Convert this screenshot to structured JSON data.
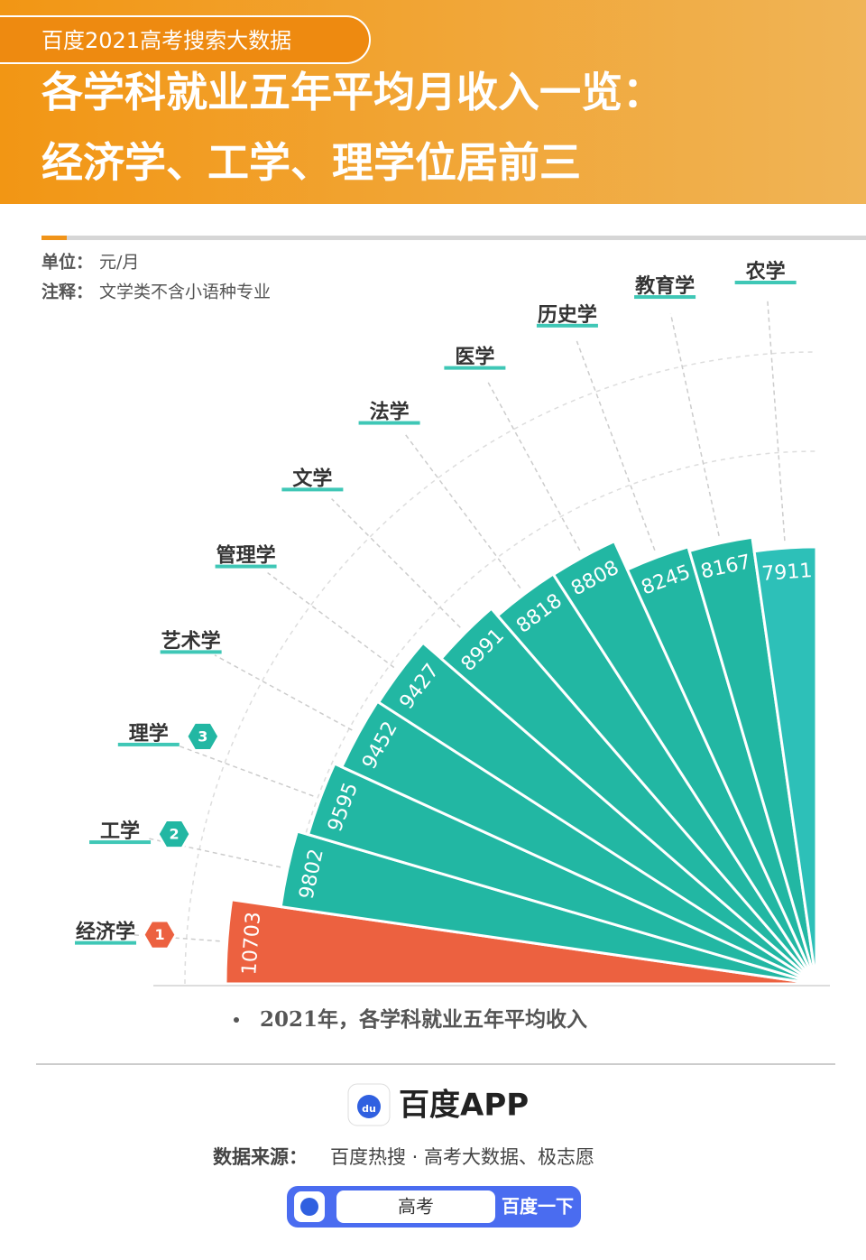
{
  "header": {
    "tag": "百度2021高考搜索大数据",
    "title_lines": [
      "各学科就业五年平均月收入一览：",
      "经济学、工学、理学位居前三"
    ]
  },
  "chart_data": {
    "type": "radial-bar",
    "unit_label": "单位：",
    "unit": "元/月",
    "note_label": "注释：",
    "note": "文学类不含小语种专业",
    "categories": [
      "经济学",
      "工学",
      "理学",
      "艺术学",
      "管理学",
      "文学",
      "法学",
      "医学",
      "历史学",
      "教育学",
      "农学"
    ],
    "values": [
      10703,
      9802,
      9595,
      9452,
      9427,
      8991,
      8818,
      8808,
      8245,
      8167,
      7911
    ],
    "colors": [
      "#ec6140",
      "#22b7a3",
      "#22b7a3",
      "#22b7a3",
      "#22b7a3",
      "#22b7a3",
      "#22b7a3",
      "#22b7a3",
      "#22b7a3",
      "#22b7a3",
      "#2dc0b8"
    ],
    "ranks": [
      1,
      2,
      3,
      null,
      null,
      null,
      null,
      null,
      null,
      null,
      null
    ],
    "rank_colors": [
      "#ec6140",
      "#22b7a3",
      "#22b7a3"
    ],
    "legend": "2021年，各学科就业五年平均收入"
  },
  "footer": {
    "logo_text": "du",
    "brand": "百度APP",
    "source_label": "数据来源：",
    "source": "百度热搜 · 高考大数据、极志愿",
    "query": "高考",
    "button": "百度一下"
  }
}
